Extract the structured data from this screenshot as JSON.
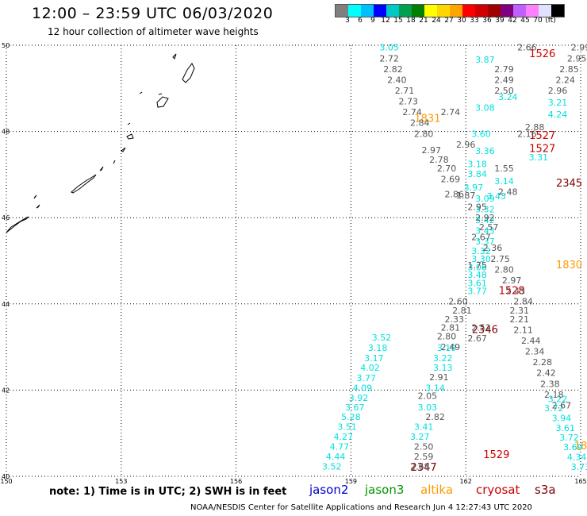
{
  "header": {
    "title": "12:00 – 23:59 UTC 06/03/2020",
    "subtitle": "12 hour collection of altimeter wave heights"
  },
  "legend": {
    "colors": [
      "#7f7f7f",
      "#00ffff",
      "#00bfff",
      "#0000ff",
      "#00c8c8",
      "#00a050",
      "#008000",
      "#ffff00",
      "#ffd700",
      "#ffa500",
      "#ff0000",
      "#d00000",
      "#a00000",
      "#800080",
      "#c060ff",
      "#ff80ff",
      "#e0e0ff",
      "#000000"
    ],
    "labels": [
      "3",
      "6",
      "9",
      "12",
      "15",
      "18",
      "21",
      "24",
      "27",
      "30",
      "33",
      "36",
      "39",
      "42",
      "45",
      "70",
      "(ft)"
    ]
  },
  "map": {
    "lat_labels": [
      "50",
      "48",
      "46",
      "44",
      "42",
      "40"
    ],
    "lon_labels": [
      "150",
      "153",
      "156",
      "159",
      "162",
      "165"
    ]
  },
  "chart_data": {
    "type": "scatter",
    "title": "12:00 – 23:59 UTC 06/03/2020",
    "xlabel": "",
    "ylabel": "",
    "xlim": [
      150,
      165
    ],
    "ylim": [
      40,
      50
    ],
    "series": [
      {
        "name": "jason2",
        "color": "#0000cc",
        "points": []
      },
      {
        "name": "jason3",
        "color": "#009900",
        "points": []
      },
      {
        "name": "altika",
        "color": "#ff9900",
        "points": [
          [
            161.0,
            48.3,
            "1831"
          ],
          [
            164.7,
            44.9,
            "1830"
          ],
          [
            165.0,
            40.7,
            "18"
          ]
        ]
      },
      {
        "name": "cryosat",
        "color": "#cc0000",
        "points": [
          [
            164.0,
            49.8,
            "1526"
          ],
          [
            164.0,
            47.9,
            "1527"
          ],
          [
            164.0,
            47.6,
            "1527"
          ],
          [
            163.2,
            44.3,
            "1528"
          ],
          [
            162.8,
            40.5,
            "1529"
          ]
        ]
      },
      {
        "name": "s3a",
        "color": "#800000",
        "points": [
          [
            164.7,
            46.8,
            "2345"
          ],
          [
            162.5,
            43.4,
            "2346"
          ],
          [
            160.9,
            40.2,
            "2347"
          ]
        ]
      },
      {
        "name": "track-cyan",
        "color": "#00e0e0",
        "points": [
          [
            160.0,
            49.95,
            "3.05"
          ],
          [
            162.5,
            49.67,
            "3.87"
          ],
          [
            163.1,
            48.8,
            "3.24"
          ],
          [
            164.4,
            48.67,
            "3.21"
          ],
          [
            162.5,
            48.55,
            "3.08"
          ],
          [
            164.4,
            48.4,
            "4.24"
          ],
          [
            162.4,
            47.95,
            "3.60"
          ],
          [
            162.5,
            47.55,
            "3.36"
          ],
          [
            163.9,
            47.4,
            "3.31"
          ],
          [
            162.3,
            47.25,
            "3.18"
          ],
          [
            162.3,
            47.02,
            "3.84"
          ],
          [
            163.0,
            46.85,
            "3.14"
          ],
          [
            162.2,
            46.7,
            "3.97"
          ],
          [
            162.8,
            46.5,
            "3.43"
          ],
          [
            162.5,
            46.45,
            "3.09"
          ],
          [
            162.5,
            46.2,
            "3.32"
          ],
          [
            162.5,
            45.95,
            "3.42"
          ],
          [
            162.5,
            45.7,
            "3.43"
          ],
          [
            162.5,
            45.45,
            "3.37"
          ],
          [
            162.4,
            45.23,
            "3.32"
          ],
          [
            162.4,
            45.05,
            "3.30"
          ],
          [
            162.3,
            44.85,
            "3.06"
          ],
          [
            162.3,
            44.68,
            "3.48"
          ],
          [
            162.3,
            44.48,
            "3.61"
          ],
          [
            162.3,
            44.3,
            "3.77"
          ],
          [
            159.8,
            43.22,
            "3.52"
          ],
          [
            159.7,
            42.98,
            "3.18"
          ],
          [
            161.5,
            42.98,
            "3.19"
          ],
          [
            159.6,
            42.74,
            "3.17"
          ],
          [
            161.4,
            42.74,
            "3.22"
          ],
          [
            159.5,
            42.52,
            "4.02"
          ],
          [
            161.4,
            42.52,
            "3.13"
          ],
          [
            159.4,
            42.28,
            "3.77"
          ],
          [
            159.3,
            42.05,
            "4.09"
          ],
          [
            161.2,
            42.05,
            "3.14"
          ],
          [
            159.2,
            41.82,
            "3.92"
          ],
          [
            159.1,
            41.6,
            "3.67"
          ],
          [
            161.0,
            41.6,
            "3.03"
          ],
          [
            159.0,
            41.38,
            "5.28"
          ],
          [
            158.9,
            41.15,
            "3.51"
          ],
          [
            160.9,
            41.15,
            "3.41"
          ],
          [
            158.8,
            40.92,
            "4.27"
          ],
          [
            160.8,
            40.92,
            "3.27"
          ],
          [
            158.7,
            40.69,
            "4.77"
          ],
          [
            158.6,
            40.46,
            "4.44"
          ],
          [
            158.5,
            40.23,
            "3.52"
          ],
          [
            164.4,
            41.8,
            "3.22"
          ],
          [
            164.3,
            41.58,
            "3.72"
          ],
          [
            164.5,
            41.35,
            "3.94"
          ],
          [
            164.6,
            41.12,
            "3.61"
          ],
          [
            164.7,
            40.9,
            "3.72"
          ],
          [
            164.8,
            40.68,
            "3.69"
          ],
          [
            164.9,
            40.45,
            "4.34"
          ],
          [
            165.0,
            40.22,
            "3.73"
          ]
        ]
      },
      {
        "name": "track-gray",
        "color": "#555555",
        "points": [
          [
            163.6,
            49.95,
            "2.66"
          ],
          [
            165.0,
            49.95,
            "2.99"
          ],
          [
            160.0,
            49.7,
            "2.72"
          ],
          [
            164.9,
            49.7,
            "2.95"
          ],
          [
            160.1,
            49.45,
            "2.82"
          ],
          [
            163.0,
            49.45,
            "2.79"
          ],
          [
            164.7,
            49.45,
            "2.85"
          ],
          [
            160.2,
            49.2,
            "2.40"
          ],
          [
            163.0,
            49.2,
            "2.49"
          ],
          [
            164.6,
            49.2,
            "2.24"
          ],
          [
            160.4,
            48.95,
            "2.71"
          ],
          [
            163.0,
            48.95,
            "2.50"
          ],
          [
            164.4,
            48.95,
            "2.96"
          ],
          [
            160.5,
            48.7,
            "2.73"
          ],
          [
            160.6,
            48.45,
            "2.74"
          ],
          [
            161.6,
            48.45,
            "2.74"
          ],
          [
            163.8,
            48.1,
            "2.88"
          ],
          [
            160.8,
            48.2,
            "2.84"
          ],
          [
            163.6,
            47.95,
            "2.16"
          ],
          [
            160.9,
            47.95,
            "2.80"
          ],
          [
            162.0,
            47.7,
            "2.96"
          ],
          [
            161.1,
            47.57,
            "2.97"
          ],
          [
            161.3,
            47.35,
            "2.78"
          ],
          [
            161.5,
            47.15,
            "2.70"
          ],
          [
            163.0,
            47.15,
            "1.55"
          ],
          [
            161.6,
            46.9,
            "2.69"
          ],
          [
            163.1,
            46.6,
            "2.48"
          ],
          [
            161.7,
            46.55,
            "2.86"
          ],
          [
            162.0,
            46.52,
            "1.87"
          ],
          [
            162.3,
            46.25,
            "2.95"
          ],
          [
            162.5,
            46.0,
            "2.92"
          ],
          [
            162.6,
            45.78,
            "2.57"
          ],
          [
            162.4,
            45.55,
            "2.67"
          ],
          [
            162.7,
            45.3,
            "2.36"
          ],
          [
            162.9,
            45.05,
            "2.75"
          ],
          [
            162.3,
            44.9,
            "1.75"
          ],
          [
            163.0,
            44.8,
            "2.80"
          ],
          [
            163.2,
            44.55,
            "2.97"
          ],
          [
            163.3,
            44.3,
            "2.43"
          ],
          [
            163.5,
            44.06,
            "2.84"
          ],
          [
            161.8,
            44.06,
            "2.60"
          ],
          [
            163.4,
            43.85,
            "2.31"
          ],
          [
            161.9,
            43.85,
            "2.81"
          ],
          [
            161.7,
            43.65,
            "2.33"
          ],
          [
            163.4,
            43.65,
            "2.21"
          ],
          [
            161.6,
            43.45,
            "2.81"
          ],
          [
            162.4,
            43.45,
            "2.52"
          ],
          [
            163.5,
            43.4,
            "2.11"
          ],
          [
            161.5,
            43.25,
            "2.80"
          ],
          [
            162.3,
            43.2,
            "2.67"
          ],
          [
            163.7,
            43.15,
            "2.44"
          ],
          [
            161.6,
            43.0,
            "2.49"
          ],
          [
            163.8,
            42.9,
            "2.34"
          ],
          [
            164.0,
            42.65,
            "2.28"
          ],
          [
            164.1,
            42.4,
            "2.42"
          ],
          [
            164.2,
            42.15,
            "2.38"
          ],
          [
            164.3,
            41.9,
            "2.18"
          ],
          [
            164.5,
            41.65,
            "2.67"
          ],
          [
            161.3,
            42.3,
            "2.91"
          ],
          [
            161.0,
            41.87,
            "2.05"
          ],
          [
            161.2,
            41.38,
            "2.82"
          ],
          [
            160.9,
            40.69,
            "2.50"
          ],
          [
            160.9,
            40.46,
            "2.59"
          ],
          [
            160.8,
            40.23,
            "2.68"
          ]
        ]
      }
    ]
  },
  "footer": {
    "note": "note: 1) Time is in UTC; 2) SWH is in feet",
    "sat_jason2": "jason2",
    "sat_jason3": "jason3",
    "sat_altika": "altika",
    "sat_cryosat": "cryosat",
    "sat_s3a": "s3a",
    "credit": "NOAA/NESDIS Center for Satellite Applications and Research    Jun  4 12:27:43 UTC 2020"
  }
}
